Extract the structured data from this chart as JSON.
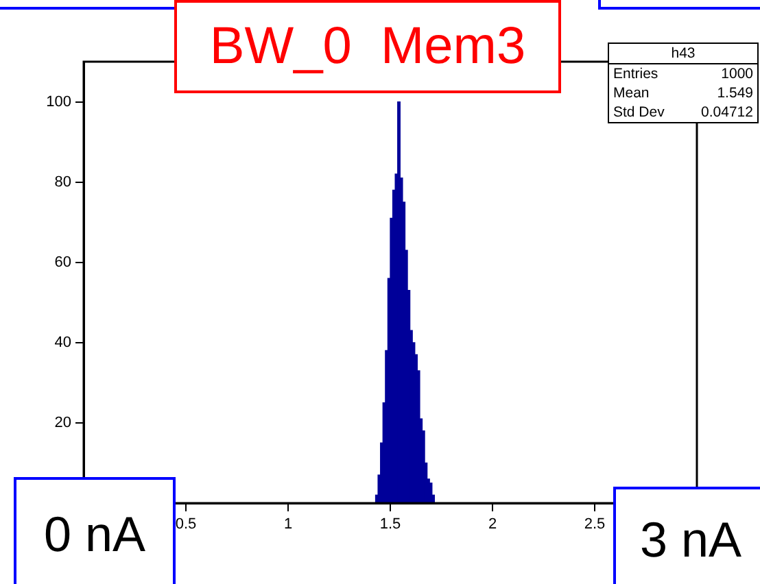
{
  "chart_data": {
    "type": "histogram",
    "title": "BW_0  Mem3",
    "bins": [
      1.428,
      1.44,
      1.452,
      1.464,
      1.476,
      1.488,
      1.5,
      1.512,
      1.524,
      1.536,
      1.548,
      1.56,
      1.572,
      1.584,
      1.596,
      1.608,
      1.62,
      1.632,
      1.644,
      1.656,
      1.668,
      1.68,
      1.692,
      1.704,
      1.716
    ],
    "values": [
      2,
      7,
      15,
      25,
      38,
      56,
      71,
      78,
      82,
      100,
      81,
      75,
      63,
      53,
      43,
      40,
      37,
      33,
      21,
      18,
      10,
      6,
      5,
      2
    ],
    "color": "#000099",
    "xlim": [
      0,
      3
    ],
    "xticks": [
      0.5,
      1,
      1.5,
      2,
      2.5
    ],
    "ylim": [
      0,
      110
    ],
    "yticks": [
      20,
      40,
      60,
      80,
      100
    ],
    "grid": false,
    "legend": false,
    "annotations": [
      "h43",
      "Entries",
      "1000",
      "Mean",
      "1.549",
      "Std Dev",
      "0.04712",
      "0 nA",
      "3 nA"
    ]
  }
}
